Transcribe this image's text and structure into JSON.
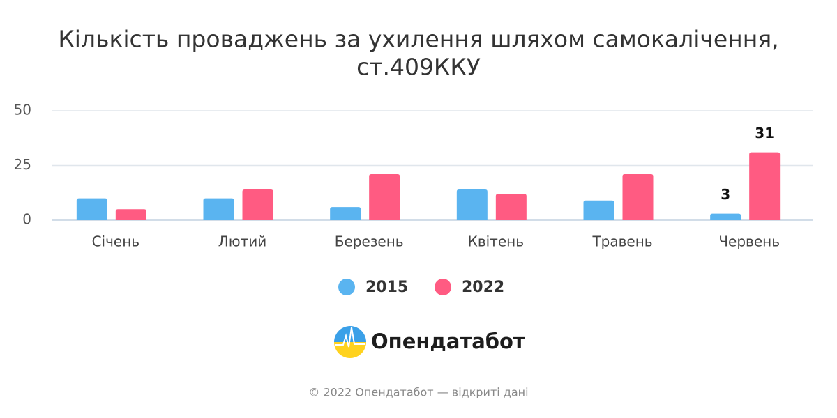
{
  "chart_data": {
    "type": "bar",
    "title": [
      "Кількість проваджень за ухилення шляхом самокалічення,",
      "ст.409ККУ"
    ],
    "categories": [
      "Січень",
      "Лютий",
      "Березень",
      "Квітень",
      "Травень",
      "Червень"
    ],
    "series": [
      {
        "name": "2015",
        "color": "#5ab4f0",
        "values": [
          10,
          10,
          6,
          14,
          9,
          3
        ]
      },
      {
        "name": "2022",
        "color": "#ff5b82",
        "values": [
          5,
          14,
          21,
          12,
          21,
          31
        ]
      }
    ],
    "ylim": [
      0,
      50
    ],
    "yticks": [
      0,
      25,
      50
    ],
    "grid": true,
    "data_labels": "last",
    "legend": "bottom"
  },
  "logo": "Опендатабот",
  "footer": "© 2022 Опендатабот — відкриті дані"
}
